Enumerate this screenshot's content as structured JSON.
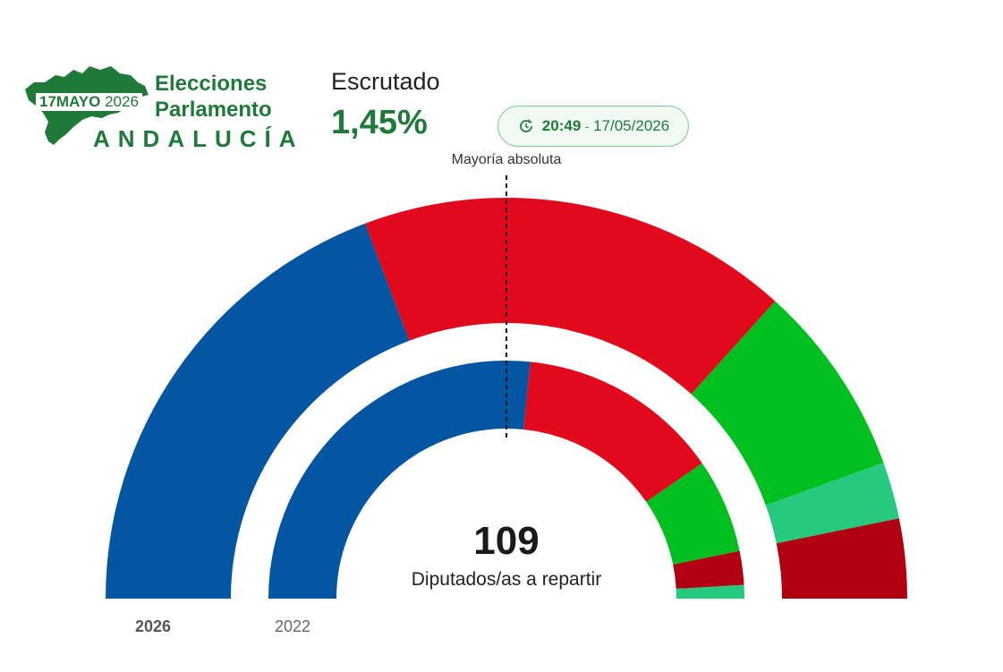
{
  "logo": {
    "date_day_month": "17MAYO",
    "date_year": "2026",
    "title_line1": "Elecciones",
    "title_line2": "Parlamento",
    "region": "ANDALUCÍA",
    "color": "#1f7a3a"
  },
  "escrutinio": {
    "label": "Escrutado",
    "value": "1,45%"
  },
  "timestamp": {
    "icon": "clock-icon",
    "time": "20:49",
    "separator": "-",
    "date": "17/05/2026"
  },
  "majority_label": "Mayoría absoluta",
  "center": {
    "total": "109",
    "label": "Diputados/as a repartir"
  },
  "ring_labels": {
    "outer": "2026",
    "inner": "2022"
  },
  "chart_data": {
    "type": "pie",
    "subtype": "semicircle-parliament",
    "total_seats": 109,
    "majority_line": 55,
    "rings": [
      {
        "name": "2026",
        "segments": [
          {
            "value": 42,
            "color": "#0456a3"
          },
          {
            "value": 38,
            "color": "#e00a1c"
          },
          {
            "value": 17,
            "color": "#00bf1e"
          },
          {
            "value": 5,
            "color": "#27c97e"
          },
          {
            "value": 7,
            "color": "#b00012"
          }
        ]
      },
      {
        "name": "2022",
        "segments": [
          {
            "value": 58,
            "color": "#0456a3"
          },
          {
            "value": 30,
            "color": "#e00a1c"
          },
          {
            "value": 14,
            "color": "#00bf1e"
          },
          {
            "value": 5,
            "color": "#b00012"
          },
          {
            "value": 2,
            "color": "#27c97e"
          }
        ]
      }
    ]
  }
}
